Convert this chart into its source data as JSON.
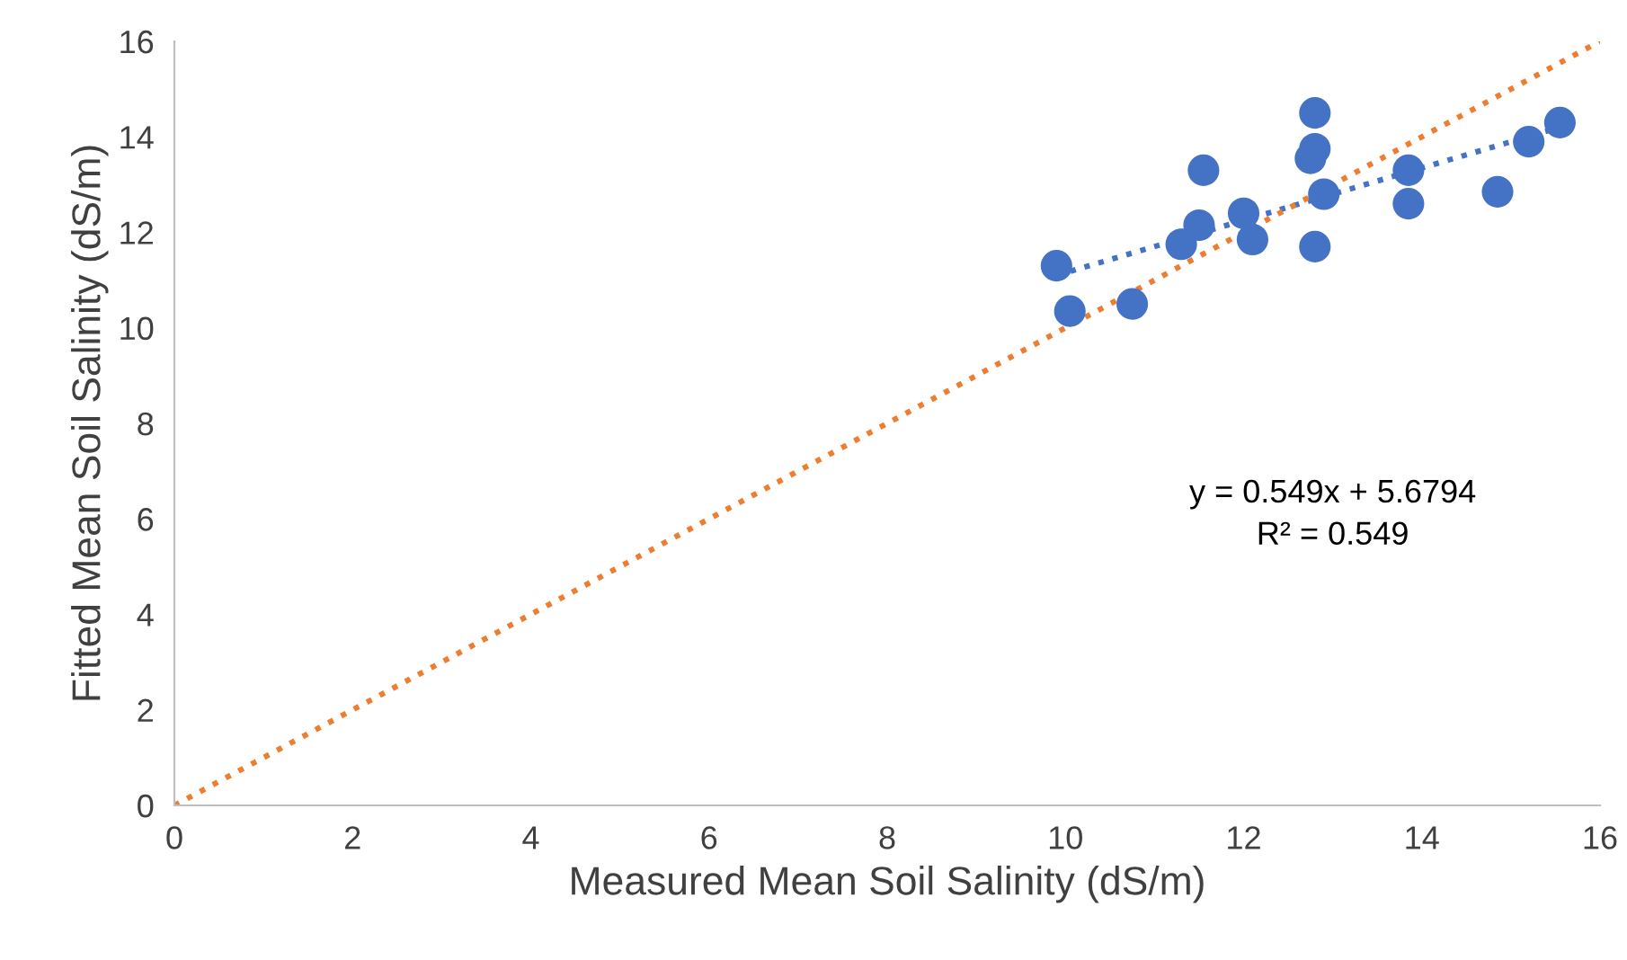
{
  "chart_data": {
    "type": "scatter",
    "xlabel": "Measured Mean Soil Salinity (dS/m)",
    "ylabel": "Fitted Mean Soil Salinity (dS/m)",
    "xlim": [
      0,
      16
    ],
    "ylim": [
      0,
      16
    ],
    "xticks": [
      0,
      2,
      4,
      6,
      8,
      10,
      12,
      14,
      16
    ],
    "yticks": [
      0,
      2,
      4,
      6,
      8,
      10,
      12,
      14,
      16
    ],
    "grid": false,
    "legend": false,
    "series": [
      {
        "color": "#4472c4",
        "marker": "circle",
        "x": [
          9.9,
          10.05,
          10.75,
          11.3,
          11.5,
          11.55,
          12.0,
          12.1,
          12.8,
          12.8,
          12.75,
          12.9,
          12.8,
          13.85,
          13.85,
          14.85,
          15.2,
          15.55
        ],
        "values": [
          11.3,
          10.35,
          10.5,
          11.75,
          12.15,
          13.3,
          12.4,
          11.85,
          14.5,
          13.75,
          13.55,
          12.8,
          11.7,
          13.3,
          12.6,
          12.85,
          13.9,
          14.3
        ]
      },
      {
        "type": "line",
        "color": "#4472c4",
        "line_style": "dotted",
        "marker": "none",
        "x": [
          9.9,
          15.55
        ],
        "values": [
          11.1,
          14.2
        ]
      },
      {
        "type": "line",
        "color": "#ed7d31",
        "line_style": "dotted",
        "marker": "none",
        "x": [
          0,
          16
        ],
        "values": [
          0,
          16
        ]
      }
    ],
    "annotations": [
      "y = 0.549x + 5.6794\nR² = 0.549"
    ]
  }
}
